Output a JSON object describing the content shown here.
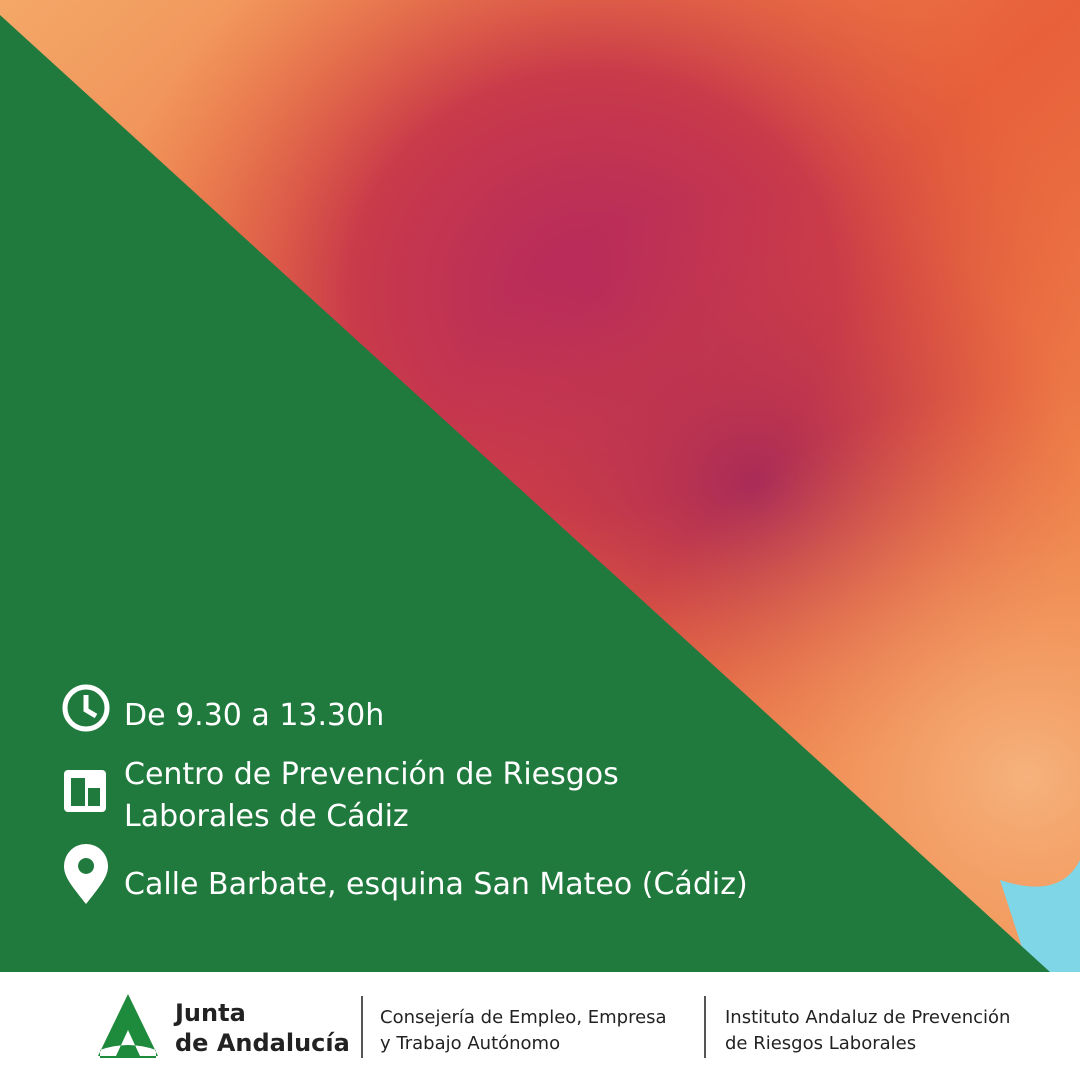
{
  "info": [
    {
      "lines": [
        "De 9.30 a 13.30h"
      ]
    },
    {
      "lines": [
        "Centro de Prevención de Riesgos",
        "Laborales de Cádiz"
      ]
    },
    {
      "lines": [
        "Calle Barbate, esquina San Mateo (Cádiz)"
      ]
    }
  ],
  "footer": {
    "logo": [
      "Junta",
      "de Andalucía"
    ],
    "department": [
      "Consejería de Empleo, Empresa",
      "y Trabajo Autónomo"
    ],
    "institute": [
      "Instituto Andaluz de Prevención",
      "de Riesgos Laborales"
    ]
  }
}
